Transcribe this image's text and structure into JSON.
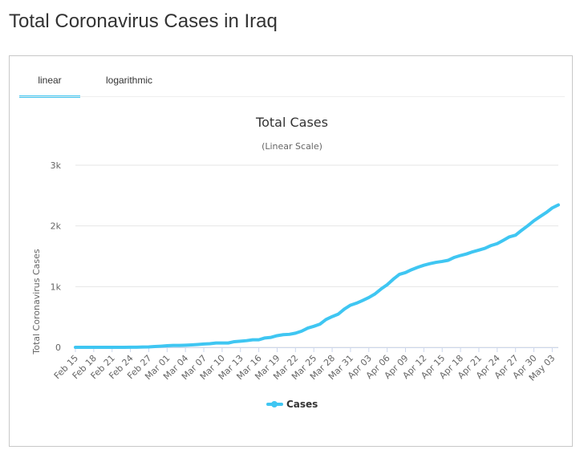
{
  "page": {
    "title": "Total Coronavirus Cases in Iraq"
  },
  "tabs": [
    {
      "label": "linear",
      "active": true
    },
    {
      "label": "logarithmic",
      "active": false
    }
  ],
  "colors": {
    "series": "#3fc6f2",
    "grid": "#e6e6e6",
    "text": "#333333",
    "axis": "#666666"
  },
  "chart_data": {
    "type": "line",
    "title": "Total Cases",
    "subtitle": "(Linear Scale)",
    "ylabel": "Total Coronavirus Cases",
    "xlabel": "",
    "ylim": [
      0,
      3000
    ],
    "yticks": [
      0,
      1000,
      2000,
      3000
    ],
    "ytick_labels": [
      "0",
      "1k",
      "2k",
      "3k"
    ],
    "xtick_labels": [
      "Feb 15",
      "Feb 18",
      "Feb 21",
      "Feb 24",
      "Feb 27",
      "Mar 01",
      "Mar 04",
      "Mar 07",
      "Mar 10",
      "Mar 13",
      "Mar 16",
      "Mar 19",
      "Mar 22",
      "Mar 25",
      "Mar 28",
      "Mar 31",
      "Apr 03",
      "Apr 06",
      "Apr 09",
      "Apr 12",
      "Apr 15",
      "Apr 18",
      "Apr 21",
      "Apr 24",
      "Apr 27",
      "Apr 30",
      "May 03"
    ],
    "legend": "bottom-center",
    "series": [
      {
        "name": "Cases",
        "start": "Feb 15",
        "values": [
          0,
          0,
          0,
          0,
          0,
          0,
          0,
          0,
          0,
          1,
          1,
          5,
          7,
          13,
          19,
          26,
          31,
          32,
          35,
          40,
          46,
          54,
          60,
          71,
          71,
          71,
          93,
          101,
          110,
          124,
          124,
          154,
          164,
          192,
          208,
          214,
          233,
          266,
          316,
          346,
          382,
          458,
          506,
          547,
          630,
          694,
          728,
          772,
          820,
          879,
          961,
          1031,
          1122,
          1202,
          1232,
          1279,
          1318,
          1352,
          1378,
          1400,
          1415,
          1434,
          1482,
          1513,
          1539,
          1574,
          1602,
          1631,
          1677,
          1708,
          1763,
          1820,
          1847,
          1928,
          2003,
          2085,
          2153,
          2219,
          2296,
          2346
        ]
      }
    ]
  }
}
